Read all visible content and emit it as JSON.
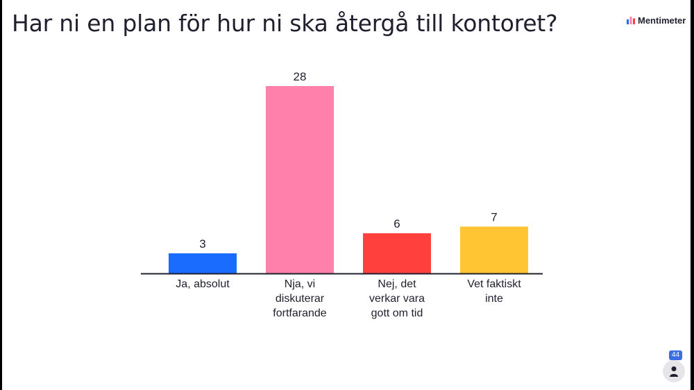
{
  "slide": {
    "title": "Har ni en plan för hur ni ska återgå till kontoret?",
    "brand_name": "Mentimeter",
    "brand_icon": "mentimeter-logo-icon",
    "responses_count": "44",
    "responses_icon": "person-icon"
  },
  "chart_data": {
    "type": "bar",
    "title": "Har ni en plan för hur ni ska återgå till kontoret?",
    "categories": [
      "Ja, absolut",
      "Nja, vi diskuterar fortfarande",
      "Nej, det verkar vara gott om tid",
      "Vet faktiskt inte"
    ],
    "category_lines": [
      [
        "Ja, absolut"
      ],
      [
        "Nja, vi",
        "diskuterar",
        "fortfarande"
      ],
      [
        "Nej, det",
        "verkar vara",
        "gott om tid"
      ],
      [
        "Vet faktiskt",
        "inte"
      ]
    ],
    "values": [
      3,
      28,
      6,
      7
    ],
    "colors": [
      "#196cff",
      "#ff80ab",
      "#ff403d",
      "#ffc533"
    ],
    "value_labels": true,
    "grid": false,
    "legend": "none",
    "ylim": [
      0,
      28
    ]
  }
}
